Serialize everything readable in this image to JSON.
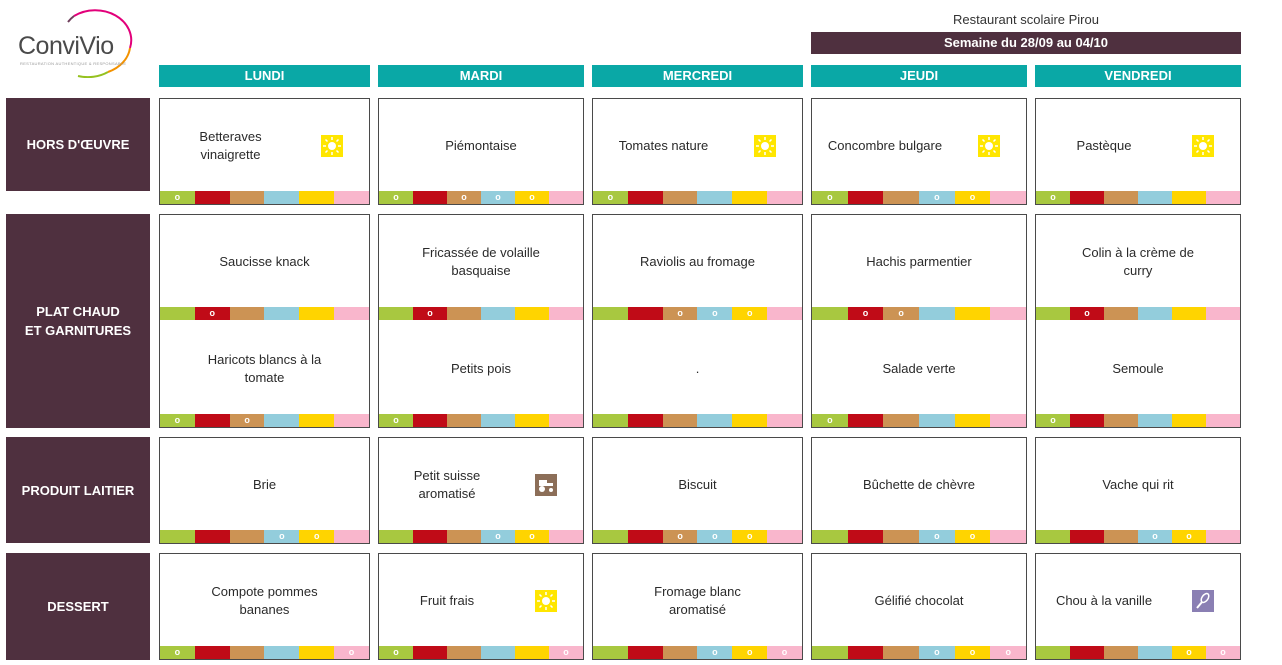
{
  "brand": {
    "name": "ConviVio",
    "tagline": "RESTAURATION AUTHENTIQUE & RESPONSABLE"
  },
  "restaurant": "Restaurant scolaire Pirou",
  "week": "Semaine du 28/09 au 04/10",
  "days": [
    "LUNDI",
    "MARDI",
    "MERCREDI",
    "JEUDI",
    "VENDREDI"
  ],
  "categories": [
    "HORS D'ŒUVRE",
    "PLAT CHAUD\nET GARNITURES",
    "PRODUIT LAITIER",
    "DESSERT"
  ],
  "legend_colors": [
    "#a8c840",
    "#c00b17",
    "#cc9354",
    "#93cddc",
    "#ffd400",
    "#f9b6cc"
  ],
  "hors_doeuvre": [
    {
      "dish": "Betteraves\nvinaigrette",
      "icon": "sun-icon",
      "marks": [
        "o",
        "",
        "",
        "",
        "",
        ""
      ]
    },
    {
      "dish": "Piémontaise",
      "icon": "",
      "marks": [
        "o",
        "",
        "o",
        "o",
        "o",
        ""
      ]
    },
    {
      "dish": "Tomates nature",
      "icon": "sun-icon",
      "marks": [
        "o",
        "",
        "",
        "",
        "",
        ""
      ]
    },
    {
      "dish": "Concombre bulgare",
      "icon": "sun-icon",
      "marks": [
        "o",
        "",
        "",
        "o",
        "o",
        ""
      ]
    },
    {
      "dish": "Pastèque",
      "icon": "sun-icon",
      "marks": [
        "o",
        "",
        "",
        "",
        "",
        ""
      ]
    }
  ],
  "plat_chaud": [
    {
      "dish": "Saucisse knack",
      "icon": "",
      "marks": [
        "",
        "o",
        "",
        "",
        "",
        ""
      ]
    },
    {
      "dish": "Fricassée de volaille\nbasquaise",
      "icon": "",
      "marks": [
        "",
        "o",
        "",
        "",
        "",
        ""
      ]
    },
    {
      "dish": "Raviolis au fromage",
      "icon": "",
      "marks": [
        "",
        "",
        "o",
        "o",
        "o",
        ""
      ]
    },
    {
      "dish": "Hachis parmentier",
      "icon": "",
      "marks": [
        "",
        "o",
        "o",
        "",
        "",
        ""
      ]
    },
    {
      "dish": "Colin à la crème de\ncurry",
      "icon": "",
      "marks": [
        "",
        "o",
        "",
        "",
        "",
        ""
      ]
    }
  ],
  "garnitures": [
    {
      "dish": "Haricots blancs à la\ntomate",
      "icon": "",
      "marks": [
        "o",
        "",
        "o",
        "",
        "",
        ""
      ]
    },
    {
      "dish": "Petits pois",
      "icon": "",
      "marks": [
        "o",
        "",
        "",
        "",
        "",
        ""
      ]
    },
    {
      "dish": ".",
      "icon": "",
      "marks": [
        "",
        "",
        "",
        "",
        "",
        ""
      ]
    },
    {
      "dish": "Salade verte",
      "icon": "",
      "marks": [
        "o",
        "",
        "",
        "",
        "",
        ""
      ]
    },
    {
      "dish": "Semoule",
      "icon": "",
      "marks": [
        "o",
        "",
        "",
        "",
        "",
        ""
      ]
    }
  ],
  "produit_laitier": [
    {
      "dish": "Brie",
      "icon": "",
      "marks": [
        "",
        "",
        "",
        "o",
        "o",
        ""
      ]
    },
    {
      "dish": "Petit suisse\naromatisé",
      "icon": "tractor-icon",
      "marks": [
        "",
        "",
        "",
        "o",
        "o",
        ""
      ]
    },
    {
      "dish": "Biscuit",
      "icon": "",
      "marks": [
        "",
        "",
        "o",
        "o",
        "o",
        ""
      ]
    },
    {
      "dish": "Bûchette de chèvre",
      "icon": "",
      "marks": [
        "",
        "",
        "",
        "o",
        "o",
        ""
      ]
    },
    {
      "dish": "Vache qui rit",
      "icon": "",
      "marks": [
        "",
        "",
        "",
        "o",
        "o",
        ""
      ]
    }
  ],
  "dessert": [
    {
      "dish": "Compote pommes\nbananes",
      "icon": "",
      "marks": [
        "o",
        "",
        "",
        "",
        "",
        "o"
      ]
    },
    {
      "dish": "Fruit frais",
      "icon": "sun-icon",
      "marks": [
        "o",
        "",
        "",
        "",
        "",
        "o"
      ]
    },
    {
      "dish": "Fromage blanc\naromatisé",
      "icon": "",
      "marks": [
        "",
        "",
        "",
        "o",
        "o",
        "o"
      ]
    },
    {
      "dish": "Gélifié chocolat",
      "icon": "",
      "marks": [
        "",
        "",
        "",
        "o",
        "o",
        "o"
      ]
    },
    {
      "dish": "Chou à la vanille",
      "icon": "whisk-icon",
      "marks": [
        "",
        "",
        "",
        "",
        "o",
        "o"
      ]
    }
  ]
}
